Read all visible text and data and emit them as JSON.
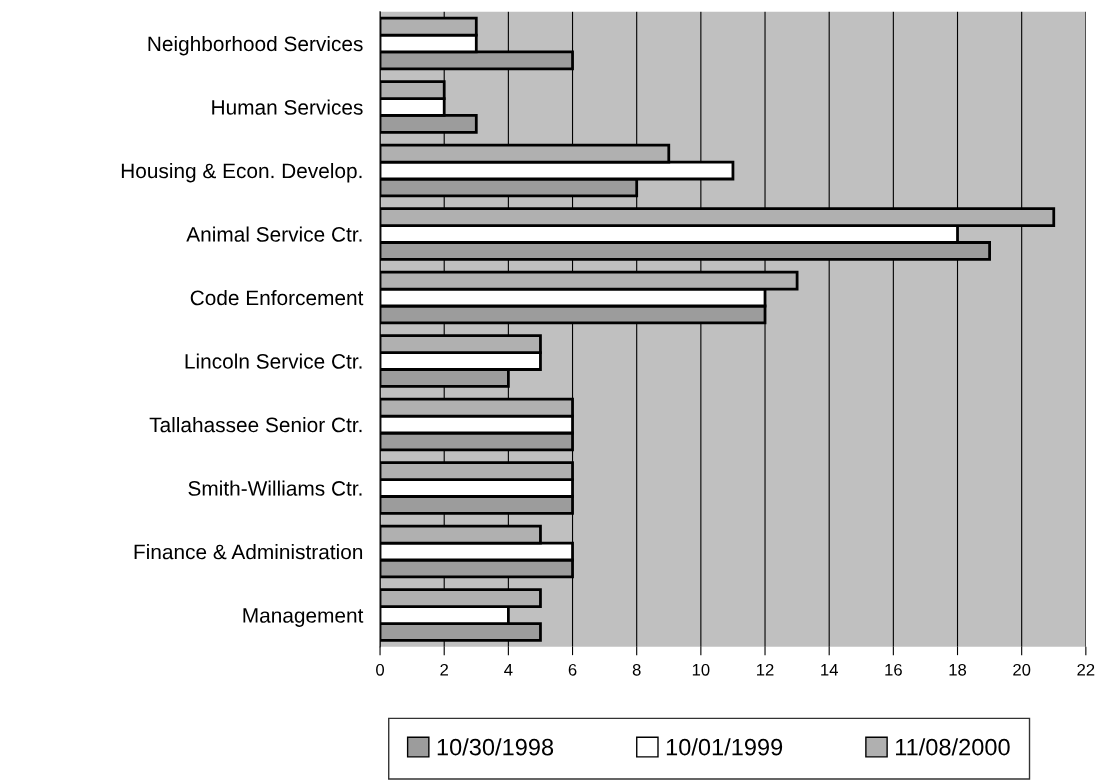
{
  "chart_data": {
    "type": "bar",
    "orientation": "horizontal",
    "categories": [
      "Neighborhood Services",
      "Human Services",
      "Housing & Econ. Develop.",
      "Animal Service Ctr.",
      "Code Enforcement",
      "Lincoln Service Ctr.",
      "Tallahassee Senior Ctr.",
      "Smith-Williams Ctr.",
      "Finance & Administration",
      "Management"
    ],
    "series": [
      {
        "name": "10/30/1998",
        "color": "#9c9c9c",
        "values": [
          6,
          3,
          8,
          19,
          12,
          4,
          6,
          6,
          6,
          5
        ]
      },
      {
        "name": "10/01/1999",
        "color": "#ffffff",
        "values": [
          3,
          2,
          11,
          18,
          12,
          5,
          6,
          6,
          6,
          4
        ]
      },
      {
        "name": "11/08/2000",
        "color": "#b0b0b0",
        "values": [
          3,
          2,
          9,
          21,
          13,
          5,
          6,
          6,
          5,
          5
        ]
      }
    ],
    "xlim": [
      0,
      22
    ],
    "xticks": [
      0,
      2,
      4,
      6,
      8,
      10,
      12,
      14,
      16,
      18,
      20,
      22
    ],
    "grid": "x",
    "legend": "bottom"
  }
}
